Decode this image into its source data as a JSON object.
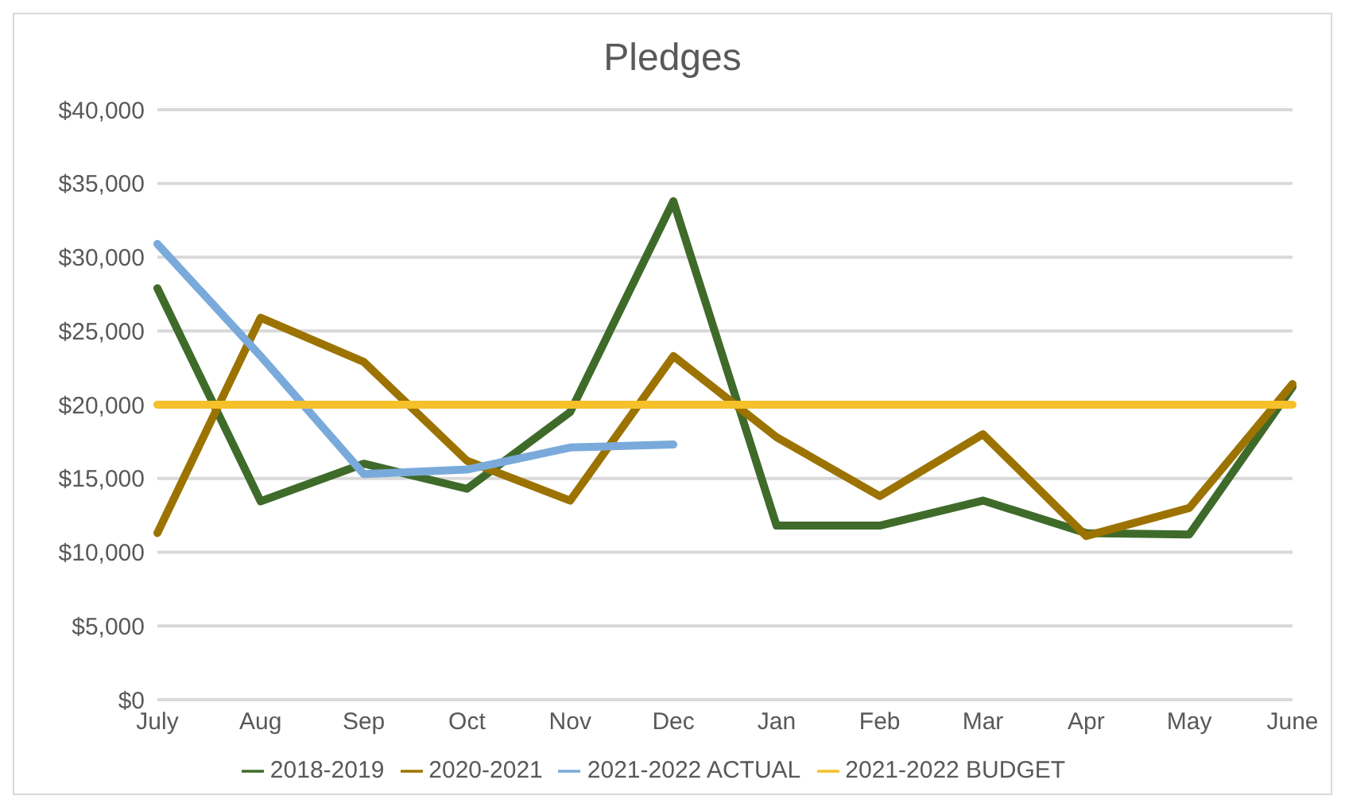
{
  "chart_data": {
    "type": "line",
    "title": "Pledges",
    "categories": [
      "July",
      "Aug",
      "Sep",
      "Oct",
      "Nov",
      "Dec",
      "Jan",
      "Feb",
      "Mar",
      "Apr",
      "May",
      "June"
    ],
    "series": [
      {
        "name": "2018-2019",
        "color": "#3f6b2a",
        "values": [
          27900,
          13450,
          16000,
          14300,
          19500,
          33800,
          11800,
          11800,
          13500,
          11300,
          11200,
          21200
        ]
      },
      {
        "name": "2020-2021",
        "color": "#9c7300",
        "values": [
          11300,
          25900,
          22900,
          16200,
          13500,
          23300,
          17800,
          13800,
          18000,
          11100,
          13000,
          21400
        ]
      },
      {
        "name": "2021-2022 ACTUAL",
        "color": "#7aaadb",
        "values": [
          30900,
          23300,
          15300,
          15600,
          17100,
          17300,
          null,
          null,
          null,
          null,
          null,
          null
        ]
      },
      {
        "name": "2021-2022 BUDGET",
        "color": "#f5c02a",
        "values": [
          20000,
          20000,
          20000,
          20000,
          20000,
          20000,
          20000,
          20000,
          20000,
          20000,
          20000,
          20000
        ]
      }
    ],
    "ylim": [
      0,
      40000
    ],
    "yticks": [
      {
        "value": 0,
        "label": "$0"
      },
      {
        "value": 5000,
        "label": "$5,000"
      },
      {
        "value": 10000,
        "label": "$10,000"
      },
      {
        "value": 15000,
        "label": "$15,000"
      },
      {
        "value": 20000,
        "label": "$20,000"
      },
      {
        "value": 25000,
        "label": "$25,000"
      },
      {
        "value": 30000,
        "label": "$30,000"
      },
      {
        "value": 35000,
        "label": "$35,000"
      },
      {
        "value": 40000,
        "label": "$40,000"
      }
    ],
    "grid": "y",
    "legend": "bottom",
    "marker": "none",
    "line_style": "solid"
  }
}
